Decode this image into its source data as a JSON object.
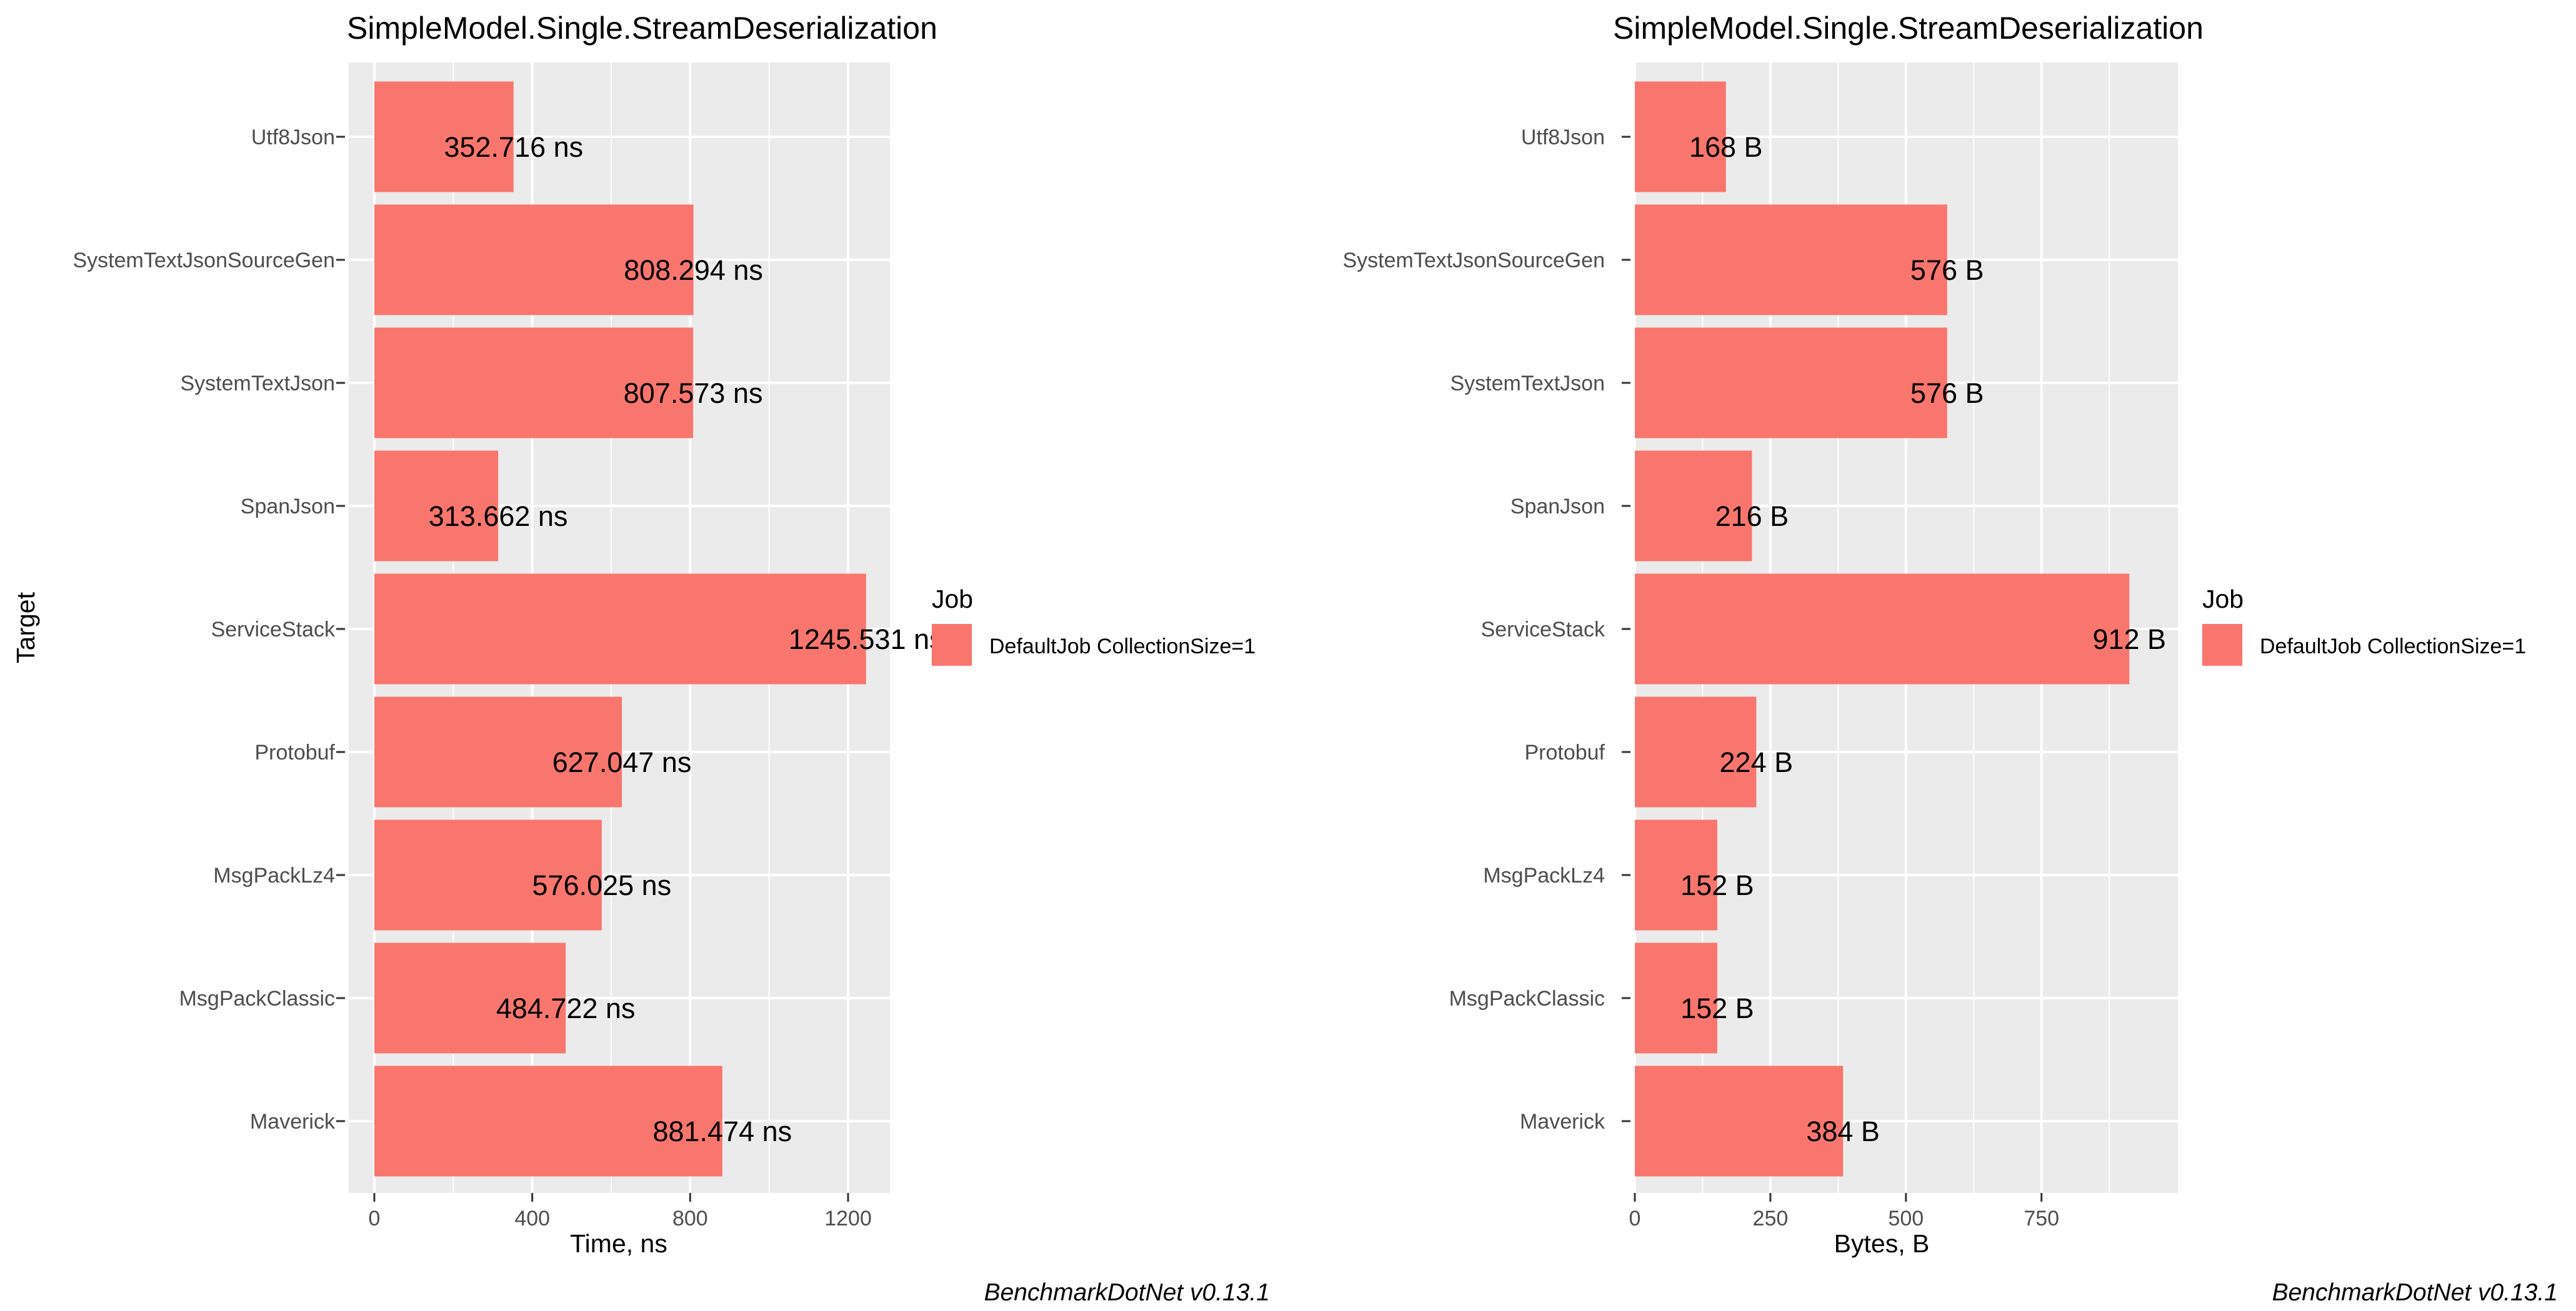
{
  "chart_data": [
    {
      "type": "bar",
      "orientation": "horizontal",
      "title": "SimpleModel.Single.StreamDeserialization",
      "xlabel": "Time, ns",
      "ylabel": "Target",
      "xlim": [
        0,
        1310
      ],
      "xticks": [
        "0",
        "400",
        "800",
        "1200"
      ],
      "xtick_values": [
        0,
        400,
        800,
        1200
      ],
      "grid": true,
      "categories": [
        "Utf8Json",
        "SystemTextJsonSourceGen",
        "SystemTextJson",
        "SpanJson",
        "ServiceStack",
        "Protobuf",
        "MsgPackLz4",
        "MsgPackClassic",
        "Maverick"
      ],
      "series": [
        {
          "name": "DefaultJob CollectionSize=1",
          "color": "#F8766D",
          "values": [
            352.716,
            808.294,
            807.573,
            313.662,
            1245.531,
            627.047,
            576.025,
            484.722,
            881.474
          ],
          "labels": [
            "352.716 ns",
            "808.294 ns",
            "807.573 ns",
            "313.662 ns",
            "1245.531 ns",
            "627.047 ns",
            "576.025 ns",
            "484.722 ns",
            "881.474 ns"
          ]
        }
      ],
      "legend": {
        "title": "Job",
        "position": "right",
        "label": "DefaultJob CollectionSize=1"
      },
      "caption": "BenchmarkDotNet v0.13.1"
    },
    {
      "type": "bar",
      "orientation": "horizontal",
      "title": "SimpleModel.Single.StreamDeserialization",
      "xlabel": "Bytes, B",
      "ylabel": "",
      "xlim": [
        0,
        950
      ],
      "xticks": [
        "0",
        "250",
        "500",
        "750"
      ],
      "xtick_values": [
        0,
        250,
        500,
        750
      ],
      "grid": true,
      "categories": [
        "Utf8Json",
        "SystemTextJsonSourceGen",
        "SystemTextJson",
        "SpanJson",
        "ServiceStack",
        "Protobuf",
        "MsgPackLz4",
        "MsgPackClassic",
        "Maverick"
      ],
      "series": [
        {
          "name": "DefaultJob CollectionSize=1",
          "color": "#F8766D",
          "values": [
            168,
            576,
            576,
            216,
            912,
            224,
            152,
            152,
            384
          ],
          "labels": [
            "168 B",
            "576 B",
            "576 B",
            "216 B",
            "912 B",
            "224 B",
            "152 B",
            "152 B",
            "384 B"
          ]
        }
      ],
      "legend": {
        "title": "Job",
        "position": "right",
        "label": "DefaultJob CollectionSize=1"
      },
      "caption": "BenchmarkDotNet v0.13.1"
    }
  ]
}
